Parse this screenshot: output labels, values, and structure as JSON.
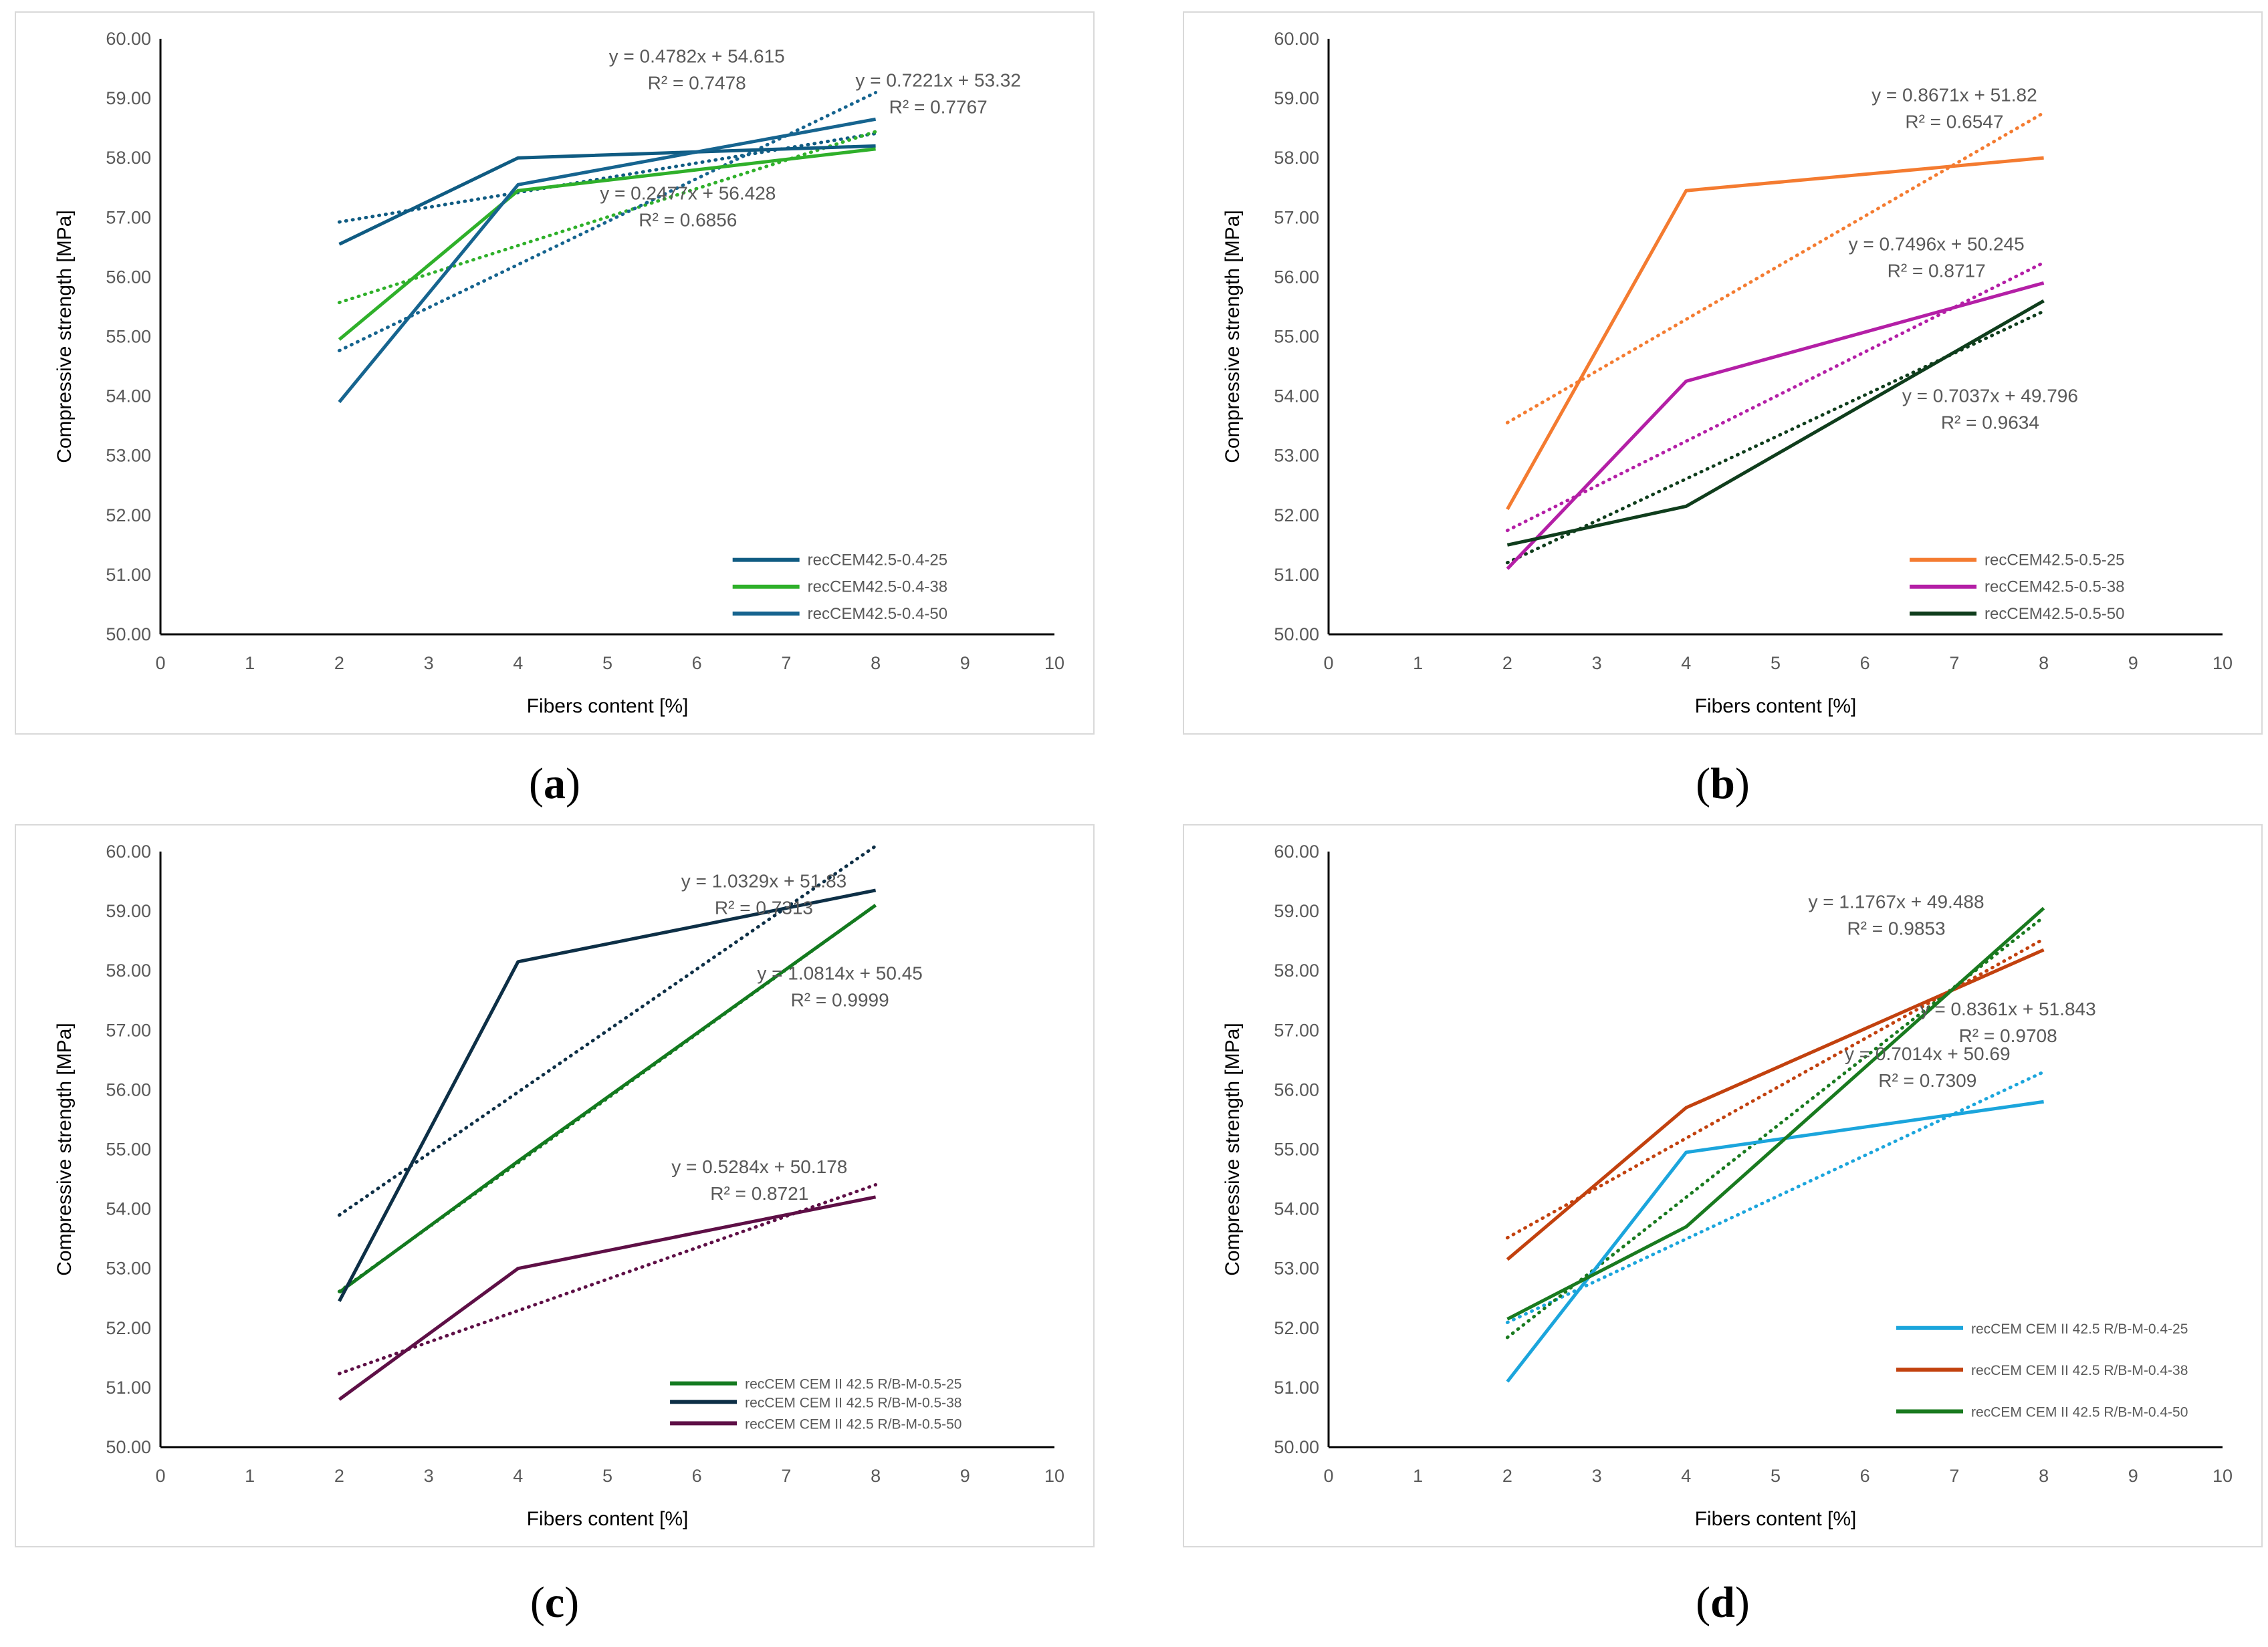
{
  "chart_data": [
    {
      "type": "line",
      "panel_label": "a",
      "xlabel": "Fibers content [%]",
      "ylabel": "Compressive strength [MPa]",
      "xlim": [
        0,
        10
      ],
      "ylim": [
        50,
        60
      ],
      "xticks": [
        "0",
        "1",
        "2",
        "3",
        "4",
        "5",
        "6",
        "7",
        "8",
        "9",
        "10"
      ],
      "yticks": [
        "50.00",
        "51.00",
        "52.00",
        "53.00",
        "54.00",
        "55.00",
        "56.00",
        "57.00",
        "58.00",
        "59.00",
        "60.00"
      ],
      "legend": "bottom-right",
      "x": [
        2,
        4,
        8
      ],
      "series": [
        {
          "name": "recCEM42.5-0.4-25",
          "color": "#0f5b82",
          "values": [
            56.55,
            58.0,
            58.2
          ],
          "trend": {
            "slope": 0.2477,
            "intercept": 56.428,
            "equation": "y = 0.2477x + 56.428",
            "r2": "R² = 0.6856"
          }
        },
        {
          "name": "recCEM42.5-0.4-38",
          "color": "#2fb02a",
          "values": [
            54.95,
            57.45,
            58.15
          ],
          "trend": {
            "slope": 0.4782,
            "intercept": 54.615,
            "equation": "y = 0.4782x + 54.615",
            "r2": "R² = 0.7478"
          }
        },
        {
          "name": "recCEM42.5-0.4-50",
          "color": "#16648f",
          "values": [
            53.9,
            57.55,
            58.65
          ],
          "trend": {
            "slope": 0.7221,
            "intercept": 53.32,
            "equation": "y = 0.7221x + 53.32",
            "r2": "R² = 0.7767"
          }
        }
      ]
    },
    {
      "type": "line",
      "panel_label": "b",
      "xlabel": "Fibers content [%]",
      "ylabel": "Compressive strength [MPa]",
      "xlim": [
        0,
        10
      ],
      "ylim": [
        50,
        60
      ],
      "xticks": [
        "0",
        "1",
        "2",
        "3",
        "4",
        "5",
        "6",
        "7",
        "8",
        "9",
        "10"
      ],
      "yticks": [
        "50.00",
        "51.00",
        "52.00",
        "53.00",
        "54.00",
        "55.00",
        "56.00",
        "57.00",
        "58.00",
        "59.00",
        "60.00"
      ],
      "legend": "bottom-right",
      "x": [
        2,
        4,
        8
      ],
      "series": [
        {
          "name": "recCEM42.5-0.5-25",
          "color": "#f47b30",
          "values": [
            52.1,
            57.45,
            58.0
          ],
          "trend": {
            "slope": 0.8671,
            "intercept": 51.82,
            "equation": "y = 0.8671x + 51.82",
            "r2": "R² = 0.6547"
          }
        },
        {
          "name": "recCEM42.5-0.5-38",
          "color": "#b41fa6",
          "values": [
            51.1,
            54.25,
            55.9
          ],
          "trend": {
            "slope": 0.7496,
            "intercept": 50.245,
            "equation": "y = 0.7496x + 50.245",
            "r2": "R² = 0.8717"
          }
        },
        {
          "name": "recCEM42.5-0.5-50",
          "color": "#0f3d1c",
          "values": [
            51.5,
            52.15,
            55.6
          ],
          "trend": {
            "slope": 0.7037,
            "intercept": 49.796,
            "equation": "y = 0.7037x + 49.796",
            "r2": "R² = 0.9634"
          }
        }
      ]
    },
    {
      "type": "line",
      "panel_label": "c",
      "xlabel": "Fibers content [%]",
      "ylabel": "Compressive strength [MPa]",
      "xlim": [
        0,
        10
      ],
      "ylim": [
        50,
        60
      ],
      "xticks": [
        "0",
        "1",
        "2",
        "3",
        "4",
        "5",
        "6",
        "7",
        "8",
        "9",
        "10"
      ],
      "yticks": [
        "50.00",
        "51.00",
        "52.00",
        "53.00",
        "54.00",
        "55.00",
        "56.00",
        "57.00",
        "58.00",
        "59.00",
        "60.00"
      ],
      "legend": "bottom-right",
      "x": [
        2,
        4,
        8
      ],
      "series": [
        {
          "name": "recCEM CEM II 42.5 R/B-M-0.5-25",
          "color": "#137a1f",
          "values": [
            52.6,
            54.8,
            59.1
          ],
          "trend": {
            "slope": 1.0814,
            "intercept": 50.45,
            "equation": "y = 1.0814x + 50.45",
            "r2": "R² = 0.9999"
          }
        },
        {
          "name": "recCEM CEM II 42.5 R/B-M-0.5-38",
          "color": "#0d2f46",
          "values": [
            52.45,
            58.15,
            59.35
          ],
          "trend": {
            "slope": 1.0329,
            "intercept": 51.83,
            "equation": "y = 1.0329x + 51.83",
            "r2": "R² = 0.7313"
          }
        },
        {
          "name": "recCEM CEM II 42.5 R/B-M-0.5-50",
          "color": "#5e0f46",
          "values": [
            50.8,
            53.0,
            54.2
          ],
          "trend": {
            "slope": 0.5284,
            "intercept": 50.178,
            "equation": "y = 0.5284x + 50.178",
            "r2": "R² = 0.8721"
          }
        }
      ]
    },
    {
      "type": "line",
      "panel_label": "d",
      "xlabel": "Fibers content [%]",
      "ylabel": "Compressive strength [MPa]",
      "xlim": [
        0,
        10
      ],
      "ylim": [
        50,
        60
      ],
      "xticks": [
        "0",
        "1",
        "2",
        "3",
        "4",
        "5",
        "6",
        "7",
        "8",
        "9",
        "10"
      ],
      "yticks": [
        "50.00",
        "51.00",
        "52.00",
        "53.00",
        "54.00",
        "55.00",
        "56.00",
        "57.00",
        "58.00",
        "59.00",
        "60.00"
      ],
      "legend": "bottom-right",
      "x": [
        2,
        4,
        8
      ],
      "series": [
        {
          "name": "recCEM CEM II 42.5 R/B-M-0.4-25",
          "color": "#1ba5dc",
          "values": [
            51.1,
            54.95,
            55.8
          ],
          "trend": {
            "slope": 0.7014,
            "intercept": 50.69,
            "equation": "y = 0.7014x + 50.69",
            "r2": "R² = 0.7309"
          }
        },
        {
          "name": "recCEM CEM II 42.5 R/B-M-0.4-38",
          "color": "#c2410e",
          "values": [
            53.15,
            55.7,
            58.35
          ],
          "trend": {
            "slope": 0.8361,
            "intercept": 51.843,
            "equation": "y = 0.8361x + 51.843",
            "r2": "R² = 0.9708"
          }
        },
        {
          "name": "recCEM CEM II 42.5 R/B-M-0.4-50",
          "color": "#197a1f",
          "values": [
            52.15,
            53.7,
            59.05
          ],
          "trend": {
            "slope": 1.1767,
            "intercept": 49.488,
            "equation": "y = 1.1767x + 49.488",
            "r2": "R² = 0.9853"
          }
        }
      ]
    }
  ]
}
